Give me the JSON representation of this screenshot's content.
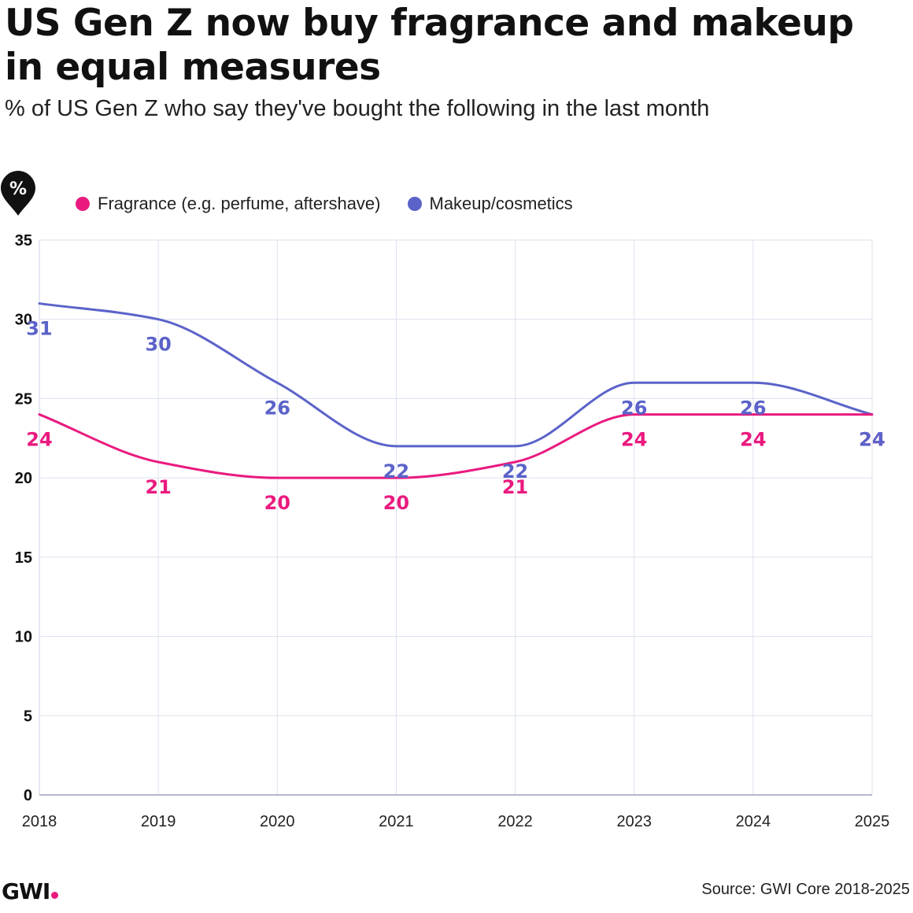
{
  "header": {
    "title": "US Gen Z now buy fragrance and makeup in equal measures",
    "subtitle": "% of US Gen Z who say they've bought the following in the last month",
    "badge": "%"
  },
  "colors": {
    "fragrance": "#ea1a7f",
    "makeup": "#5b63c9",
    "grid": "#dde1ee",
    "badge_bg": "#111111",
    "logo_dot": "#ea1a7f"
  },
  "chart_data": {
    "type": "line",
    "x": [
      "2018",
      "2019",
      "2020",
      "2021",
      "2022",
      "2023",
      "2024",
      "2025"
    ],
    "series": [
      {
        "name": "Fragrance (e.g. perfume, aftershave)",
        "values": [
          24,
          21,
          20,
          20,
          21,
          24,
          24,
          24
        ]
      },
      {
        "name": "Makeup/cosmetics",
        "values": [
          31,
          30,
          26,
          22,
          22,
          26,
          26,
          24
        ]
      }
    ],
    "ylim": [
      0,
      35
    ],
    "yticks": [
      0,
      5,
      10,
      15,
      20,
      25,
      30,
      35
    ],
    "grid": true,
    "legend_position": "top-left",
    "data_labels": true,
    "smooth": true
  },
  "footer": {
    "logo": "GWI",
    "source": "Source: GWI Core 2018-2025"
  }
}
